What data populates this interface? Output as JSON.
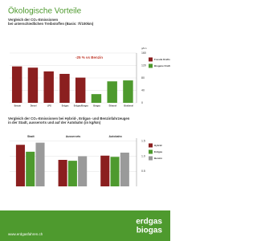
{
  "header": {
    "title": "Ökologische Vorteile"
  },
  "chart_data": [
    {
      "type": "bar",
      "title": "Vergleich der CO₂-Emissionen",
      "subtitle": "bei unterschiedlichen Treibstoffen (Basis: 7l/100km)",
      "unit": "g/km",
      "categories": [
        "Benzin",
        "Diesel",
        "LPG",
        "Erdgas",
        "Erdgas/Biogas",
        "Biogas",
        "Ethanol",
        "Biodiesel"
      ],
      "series": [
        {
          "name": "Fossile Kraftstoffe",
          "color": "#8b1f1f",
          "values": [
            117,
            113,
            101,
            93,
            81,
            null,
            null,
            null
          ]
        },
        {
          "name": "Biogene Kraftstoffe",
          "color": "#4e9a2e",
          "values": [
            null,
            null,
            null,
            null,
            null,
            28,
            69,
            72
          ]
        }
      ],
      "annotation": "-25 % vs Benzin",
      "ylim": [
        0,
        160
      ],
      "yticks": [
        0,
        40,
        80,
        120,
        160
      ],
      "grid": true
    },
    {
      "type": "bar",
      "title": "Vergleich der CO₂-Emissionen bei Hybrid-, Erdgas- und Benzinfahrzeugen",
      "subtitle": "in der Stadt, ausserorts und auf der Autobahn (in kg/km)",
      "categories": [
        "Stadt",
        "Ausserorts",
        "Autobahn"
      ],
      "series": [
        {
          "name": "Hybrid",
          "color": "#8b1f1f",
          "values": [
            1.38,
            0.88,
            1.02
          ]
        },
        {
          "name": "Erdgas",
          "color": "#4e9a2e",
          "values": [
            1.15,
            0.85,
            0.98
          ]
        },
        {
          "name": "Benzin",
          "color": "#9a9a9a",
          "values": [
            1.45,
            1.0,
            1.12
          ]
        }
      ],
      "ylim": [
        0,
        1.6
      ],
      "yticks": [
        0.5,
        {
          "value": 1,
          "label": "1.0"
        },
        1.5
      ],
      "grid": true
    }
  ],
  "footer": {
    "logo_top": "erdgas",
    "logo_bottom": "biogas",
    "url": "www.erdgasfahren.ch"
  }
}
